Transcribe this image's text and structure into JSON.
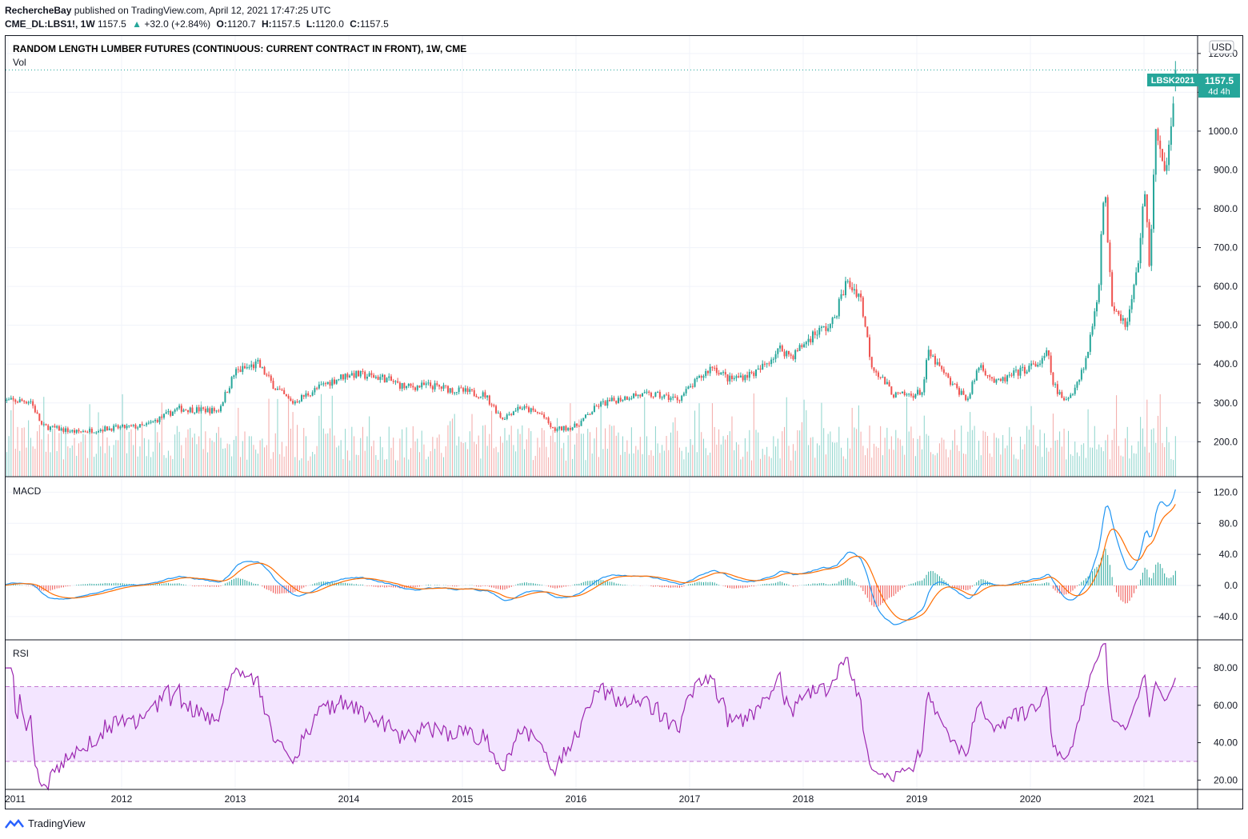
{
  "header": {
    "published": "RechercheBay published on TradingView.com, April 12, 2021 17:47:25 UTC",
    "symbol": "CME_DL:LBS1!, 1W",
    "last": "1157.5",
    "change": "+32.0 (+2.84%)",
    "o_label": "O:",
    "o_value": "1120.7",
    "h_label": "H:",
    "h_value": "1157.5",
    "l_label": "L:",
    "l_value": "1120.0",
    "c_label": "C:",
    "c_value": "1157.5",
    "up_color": "#26a69a",
    "down_color": "#ef5350"
  },
  "footer": {
    "brand": "TradingView",
    "logo_icon": "tradingview-logo-icon"
  },
  "chart_data": [
    {
      "type": "candlestick",
      "title": "RANDOM LENGTH LUMBER FUTURES (CONTINUOUS: CURRENT CONTRACT IN FRONT), 1W, CME",
      "volume_label": "Vol",
      "currency": "USD",
      "price_badge": "1157.5",
      "contract_badge": "LBSK2021",
      "countdown": "4d 4h",
      "ylim": [
        110,
        1245
      ],
      "yticks": [
        200,
        300,
        400,
        500,
        600,
        700,
        800,
        900,
        1000,
        1100,
        1200
      ],
      "ytick_labels": [
        "200.0",
        "300.0",
        "400.0",
        "500.0",
        "600.0",
        "700.0",
        "800.0",
        "900.0",
        "1000.0",
        "1100.0",
        "1200.0"
      ],
      "x_labels": [
        "2011",
        "2012",
        "2013",
        "2014",
        "2015",
        "2016",
        "2017",
        "2018",
        "2019",
        "2020",
        "2021"
      ],
      "close_keyframes": [
        [
          2010.95,
          305
        ],
        [
          2011.2,
          305
        ],
        [
          2011.3,
          240
        ],
        [
          2011.6,
          225
        ],
        [
          2011.9,
          235
        ],
        [
          2012.2,
          240
        ],
        [
          2012.5,
          285
        ],
        [
          2012.85,
          280
        ],
        [
          2013.0,
          380
        ],
        [
          2013.2,
          400
        ],
        [
          2013.35,
          340
        ],
        [
          2013.5,
          300
        ],
        [
          2013.8,
          350
        ],
        [
          2014.0,
          375
        ],
        [
          2014.3,
          365
        ],
        [
          2014.5,
          340
        ],
        [
          2014.7,
          345
        ],
        [
          2014.9,
          335
        ],
        [
          2015.2,
          320
        ],
        [
          2015.35,
          260
        ],
        [
          2015.5,
          290
        ],
        [
          2015.7,
          270
        ],
        [
          2015.8,
          230
        ],
        [
          2016.0,
          240
        ],
        [
          2016.2,
          295
        ],
        [
          2016.5,
          320
        ],
        [
          2016.7,
          320
        ],
        [
          2016.9,
          310
        ],
        [
          2017.2,
          395
        ],
        [
          2017.35,
          360
        ],
        [
          2017.6,
          380
        ],
        [
          2017.8,
          440
        ],
        [
          2017.9,
          420
        ],
        [
          2018.1,
          480
        ],
        [
          2018.25,
          500
        ],
        [
          2018.38,
          610
        ],
        [
          2018.5,
          580
        ],
        [
          2018.6,
          400
        ],
        [
          2018.8,
          320
        ],
        [
          2018.95,
          320
        ],
        [
          2019.05,
          330
        ],
        [
          2019.1,
          430
        ],
        [
          2019.3,
          350
        ],
        [
          2019.45,
          310
        ],
        [
          2019.55,
          400
        ],
        [
          2019.7,
          350
        ],
        [
          2019.9,
          380
        ],
        [
          2020.1,
          405
        ],
        [
          2020.15,
          430
        ],
        [
          2020.2,
          350
        ],
        [
          2020.3,
          300
        ],
        [
          2020.4,
          345
        ],
        [
          2020.5,
          420
        ],
        [
          2020.6,
          600
        ],
        [
          2020.65,
          860
        ],
        [
          2020.72,
          560
        ],
        [
          2020.85,
          500
        ],
        [
          2020.95,
          660
        ],
        [
          2021.0,
          860
        ],
        [
          2021.05,
          650
        ],
        [
          2021.1,
          1000
        ],
        [
          2021.18,
          880
        ],
        [
          2021.28,
          1157.5
        ]
      ],
      "volume_ylim": [
        0,
        180000
      ]
    },
    {
      "type": "line",
      "title": "MACD",
      "ylim": [
        -70,
        140
      ],
      "yticks": [
        -40,
        0,
        40,
        80,
        120
      ],
      "ytick_labels": [
        "−40.0",
        "0.0",
        "40.0",
        "80.0",
        "120.0"
      ],
      "series": [
        {
          "color": "#2196f3",
          "values": "MACD line"
        },
        {
          "color": "#ff6d00",
          "values": "Signal line"
        }
      ],
      "histogram_up_color": "#26a69a",
      "histogram_down_color": "#ef5350"
    },
    {
      "type": "line",
      "title": "RSI",
      "ylim": [
        15,
        95
      ],
      "yticks": [
        20,
        40,
        60,
        80
      ],
      "ytick_labels": [
        "20.00",
        "40.00",
        "60.00",
        "80.00"
      ],
      "band": [
        30,
        70
      ],
      "band_color": "#f3e5ff",
      "line_color": "#9c27b0"
    }
  ]
}
